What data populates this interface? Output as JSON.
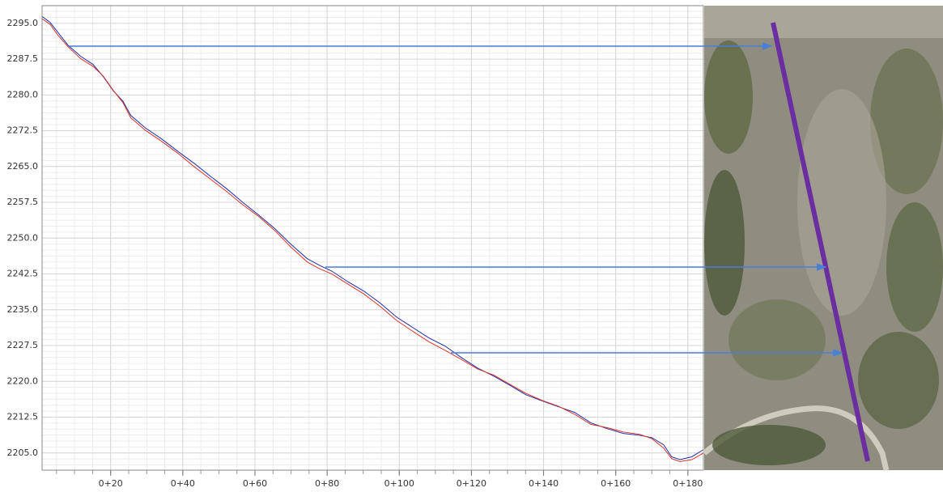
{
  "chart_data": {
    "type": "line",
    "x": [
      0.9,
      3.2,
      5.4,
      8.3,
      11.7,
      15.1,
      18.0,
      20.7,
      23.4,
      25.6,
      29.6,
      34.1,
      38.6,
      43.1,
      47.6,
      52.1,
      56.6,
      61.1,
      65.5,
      70.0,
      74.5,
      77.9,
      81.3,
      85.7,
      90.2,
      94.7,
      99.2,
      103.7,
      108.2,
      112.7,
      117.2,
      121.7,
      126.2,
      130.6,
      135.1,
      139.6,
      144.1,
      148.6,
      153.1,
      157.6,
      162.1,
      166.6,
      170.0,
      173.3,
      175.5,
      177.8,
      181.1,
      184.3
    ],
    "series": [
      {
        "color": "#1f2fa8",
        "values": [
          2296.5,
          2295.2,
          2293.1,
          2290.3,
          2288.1,
          2286.4,
          2283.8,
          2280.9,
          2278.7,
          2275.7,
          2273.1,
          2270.8,
          2268.2,
          2265.7,
          2263.0,
          2260.4,
          2257.5,
          2254.8,
          2252.0,
          2248.7,
          2245.7,
          2244.3,
          2243.1,
          2240.9,
          2238.9,
          2236.4,
          2233.5,
          2231.3,
          2229.1,
          2227.4,
          2225.0,
          2222.8,
          2221.1,
          2219.2,
          2217.2,
          2215.9,
          2214.7,
          2213.5,
          2211.3,
          2210.1,
          2209.1,
          2208.7,
          2208.2,
          2206.7,
          2204.2,
          2203.6,
          2204.2,
          2205.7
        ]
      },
      {
        "color": "#d9342b",
        "values": [
          2296.0,
          2294.8,
          2292.5,
          2290.0,
          2287.6,
          2286.0,
          2283.9,
          2281.0,
          2278.4,
          2275.2,
          2272.6,
          2270.3,
          2267.8,
          2265.0,
          2262.4,
          2259.8,
          2257.0,
          2254.5,
          2251.6,
          2248.1,
          2245.0,
          2243.6,
          2242.5,
          2240.4,
          2238.3,
          2235.7,
          2232.8,
          2230.5,
          2228.3,
          2226.5,
          2224.6,
          2222.6,
          2221.3,
          2219.4,
          2217.5,
          2216.0,
          2214.8,
          2213.1,
          2211.0,
          2210.3,
          2209.4,
          2208.9,
          2208.0,
          2206.0,
          2203.8,
          2203.2,
          2203.6,
          2205.0
        ]
      }
    ],
    "xlim": [
      1,
      184.3
    ],
    "ylim": [
      2201.4,
      2298.7
    ],
    "xticks": [
      {
        "value": 20,
        "label": "0+20"
      },
      {
        "value": 40,
        "label": "0+40"
      },
      {
        "value": 60,
        "label": "0+60"
      },
      {
        "value": 80,
        "label": "0+80"
      },
      {
        "value": 100,
        "label": "0+100"
      },
      {
        "value": 120,
        "label": "0+120"
      },
      {
        "value": 140,
        "label": "0+140"
      },
      {
        "value": 160,
        "label": "0+160"
      },
      {
        "value": 180,
        "label": "0+180"
      }
    ],
    "yticks": [
      {
        "value": 2205,
        "label": "2205.0"
      },
      2212.5,
      {
        "value": 2220,
        "label": "2220.0"
      },
      2227.5,
      {
        "value": 2235,
        "label": "2235.0"
      },
      2242.5,
      {
        "value": 2250,
        "label": "2250.0"
      },
      2257.5,
      {
        "value": 2265,
        "label": "2265.0"
      },
      2272.5,
      {
        "value": 2280,
        "label": "2280.0"
      },
      2287.5,
      {
        "value": 2295,
        "label": "2295.0"
      }
    ],
    "grid": true
  }
}
